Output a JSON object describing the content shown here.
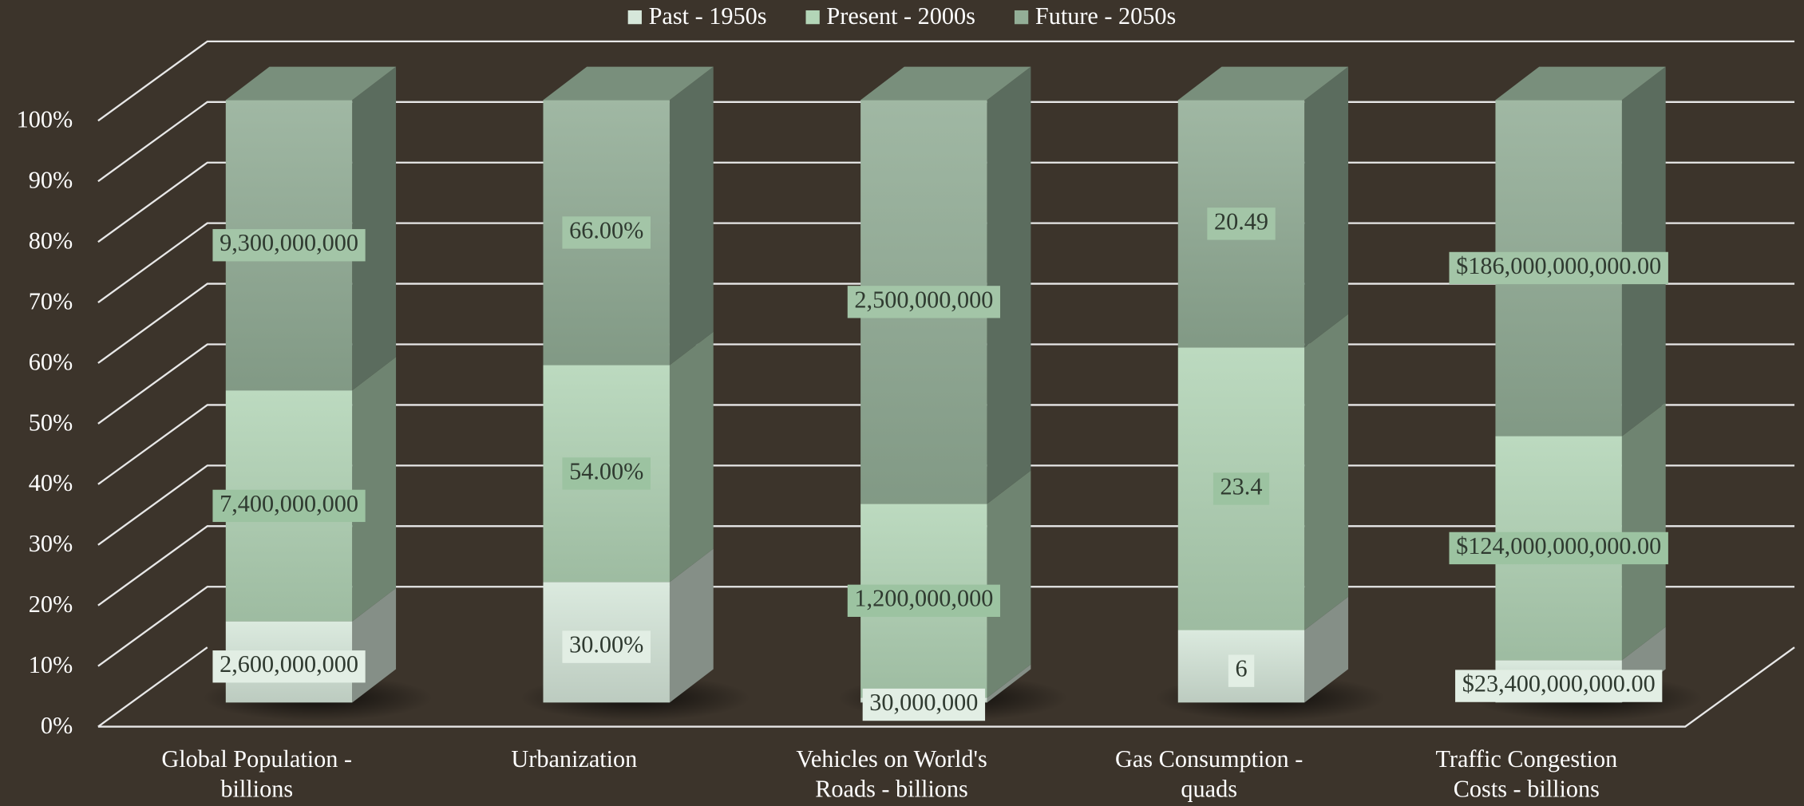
{
  "chart_data": {
    "type": "bar",
    "stacking": "percent",
    "categories": [
      "Global Population - billions",
      "Urbanization",
      "Vehicles on World's Roads - billions",
      "Gas Consumption - quads",
      "Traffic Congestion Costs - billions"
    ],
    "series": [
      {
        "name": "Past - 1950s",
        "color": "#d6e7da",
        "values": [
          2600000000,
          30,
          30000000,
          6,
          23400000000
        ],
        "value_labels": [
          "2,600,000,000",
          "30.00%",
          "30,000,000",
          "6",
          "$23,400,000,000.00"
        ]
      },
      {
        "name": "Present - 2000s",
        "color": "#b3d5b7",
        "values": [
          7400000000,
          54,
          1200000000,
          23.4,
          124000000000
        ],
        "value_labels": [
          "7,400,000,000",
          "54.00%",
          "1,200,000,000",
          "23.4",
          "$124,000,000,000.00"
        ]
      },
      {
        "name": "Future - 2050s",
        "color": "#93ae97",
        "values": [
          9300000000,
          66,
          2500000000,
          20.49,
          186000000000
        ],
        "value_labels": [
          "9,300,000,000",
          "66.00%",
          "2,500,000,000",
          "20.49",
          "$186,000,000,000.00"
        ]
      }
    ],
    "ylim": [
      0,
      100
    ],
    "yticks": [
      {
        "value": 0,
        "label": "0%"
      },
      {
        "value": 10,
        "label": "10%"
      },
      {
        "value": 20,
        "label": "20%"
      },
      {
        "value": 30,
        "label": "30%"
      },
      {
        "value": 40,
        "label": "40%"
      },
      {
        "value": 50,
        "label": "50%"
      },
      {
        "value": 60,
        "label": "60%"
      },
      {
        "value": 70,
        "label": "70%"
      },
      {
        "value": 80,
        "label": "80%"
      },
      {
        "value": 90,
        "label": "90%"
      },
      {
        "value": 100,
        "label": "100%"
      }
    ],
    "grid": true,
    "legend": "top"
  }
}
